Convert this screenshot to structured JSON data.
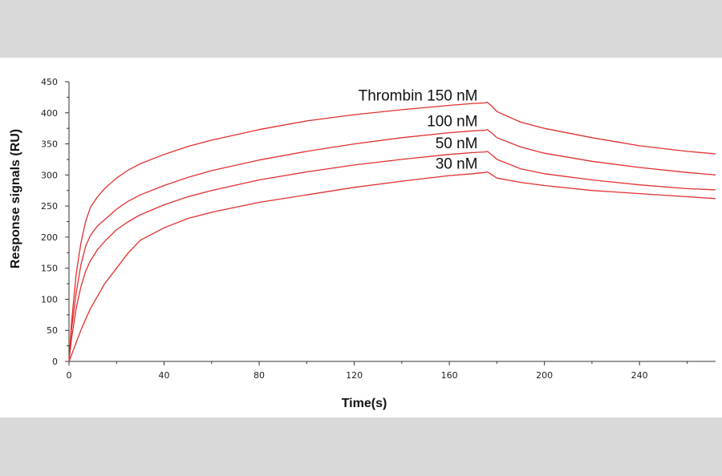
{
  "chart_data": {
    "type": "line",
    "title": "",
    "xlabel": "Time(s)",
    "ylabel": "Response signals (RU)",
    "xlim": [
      0,
      272
    ],
    "ylim": [
      0,
      450
    ],
    "xticks": [
      0,
      40,
      80,
      120,
      160,
      200,
      240
    ],
    "yticks": [
      0,
      50,
      100,
      150,
      200,
      250,
      300,
      350,
      400,
      450
    ],
    "grid": false,
    "line_color": "#e03030",
    "series": [
      {
        "name": "Thrombin 150 nM",
        "label": "Thrombin 150 nM",
        "x": [
          0,
          1,
          3,
          5,
          7,
          9,
          12,
          15,
          20,
          25,
          30,
          40,
          50,
          60,
          80,
          100,
          120,
          140,
          160,
          170,
          175,
          176,
          178,
          180,
          190,
          200,
          220,
          240,
          260,
          272
        ],
        "y": [
          0,
          60,
          140,
          190,
          225,
          248,
          265,
          278,
          295,
          308,
          318,
          333,
          346,
          356,
          373,
          387,
          397,
          405,
          412,
          415,
          416,
          417,
          410,
          402,
          385,
          375,
          360,
          347,
          338,
          334
        ]
      },
      {
        "name": "100 nM",
        "label": "100 nM",
        "x": [
          0,
          1,
          3,
          5,
          7,
          9,
          12,
          15,
          20,
          25,
          30,
          40,
          50,
          60,
          80,
          100,
          120,
          140,
          160,
          170,
          175,
          176,
          178,
          180,
          190,
          200,
          220,
          240,
          260,
          272
        ],
        "y": [
          0,
          50,
          110,
          155,
          185,
          203,
          218,
          228,
          245,
          258,
          268,
          283,
          296,
          307,
          324,
          338,
          350,
          360,
          368,
          371,
          372,
          373,
          367,
          360,
          345,
          335,
          322,
          312,
          304,
          300
        ]
      },
      {
        "name": "50 nM",
        "label": "50 nM",
        "x": [
          0,
          1,
          3,
          5,
          7,
          9,
          12,
          15,
          20,
          25,
          30,
          40,
          50,
          60,
          80,
          100,
          120,
          140,
          160,
          170,
          175,
          176,
          178,
          180,
          190,
          200,
          220,
          240,
          260,
          272
        ],
        "y": [
          0,
          35,
          85,
          120,
          145,
          162,
          180,
          193,
          212,
          225,
          236,
          252,
          265,
          275,
          292,
          305,
          316,
          325,
          333,
          336,
          337,
          338,
          332,
          325,
          310,
          302,
          292,
          284,
          278,
          276
        ]
      },
      {
        "name": "30 nM",
        "label": "30 nM",
        "x": [
          0,
          1,
          3,
          5,
          7,
          9,
          12,
          15,
          20,
          25,
          30,
          40,
          50,
          60,
          80,
          100,
          120,
          140,
          160,
          170,
          175,
          176,
          178,
          180,
          190,
          200,
          220,
          240,
          260,
          272
        ],
        "y": [
          0,
          10,
          30,
          50,
          68,
          85,
          105,
          125,
          150,
          175,
          195,
          215,
          230,
          240,
          256,
          268,
          280,
          290,
          299,
          302,
          304,
          305,
          300,
          295,
          288,
          283,
          275,
          270,
          265,
          262
        ]
      }
    ]
  }
}
